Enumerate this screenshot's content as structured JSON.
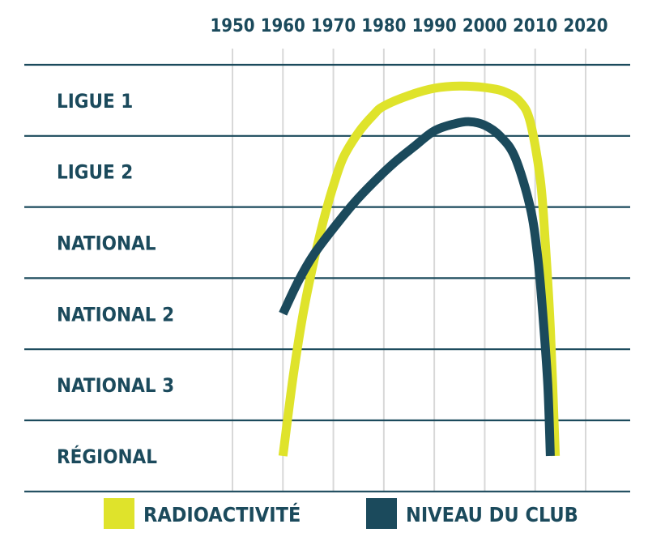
{
  "chart_data": {
    "type": "line",
    "x_ticks": [
      "1950",
      "1960",
      "1970",
      "1980",
      "1990",
      "2000",
      "2010",
      "2020"
    ],
    "xlim": [
      1950,
      2020
    ],
    "y_categories": [
      "LIGUE 1",
      "LIGUE 2",
      "NATIONAL",
      "NATIONAL 2",
      "NATIONAL 3",
      "RÉGIONAL"
    ],
    "series": [
      {
        "name": "RADIOACTIVITÉ",
        "color": "#dfe32b",
        "points": [
          [
            1960,
            0.0
          ],
          [
            1962,
            1.1
          ],
          [
            1964,
            2.0
          ],
          [
            1966,
            2.7
          ],
          [
            1968,
            3.3
          ],
          [
            1970,
            3.8
          ],
          [
            1972,
            4.2
          ],
          [
            1975,
            4.55
          ],
          [
            1978,
            4.8
          ],
          [
            1980,
            4.92
          ],
          [
            1985,
            5.07
          ],
          [
            1990,
            5.17
          ],
          [
            1995,
            5.2
          ],
          [
            2000,
            5.18
          ],
          [
            2004,
            5.12
          ],
          [
            2007,
            4.98
          ],
          [
            2009,
            4.7
          ],
          [
            2011,
            3.9
          ],
          [
            2012,
            3.0
          ],
          [
            2013,
            1.8
          ],
          [
            2014,
            0.0
          ]
        ]
      },
      {
        "name": "NIVEAU DU CLUB",
        "color": "#1b4a5c",
        "points": [
          [
            1960,
            2.0
          ],
          [
            1963,
            2.45
          ],
          [
            1966,
            2.82
          ],
          [
            1970,
            3.2
          ],
          [
            1974,
            3.55
          ],
          [
            1978,
            3.85
          ],
          [
            1982,
            4.12
          ],
          [
            1986,
            4.35
          ],
          [
            1990,
            4.57
          ],
          [
            1994,
            4.67
          ],
          [
            1997,
            4.7
          ],
          [
            2000,
            4.65
          ],
          [
            2003,
            4.5
          ],
          [
            2006,
            4.2
          ],
          [
            2009,
            3.5
          ],
          [
            2010.5,
            2.8
          ],
          [
            2011.5,
            2.0
          ],
          [
            2012.5,
            1.0
          ],
          [
            2013,
            0.0
          ]
        ]
      }
    ],
    "grid": true,
    "legend_position": "bottom"
  }
}
